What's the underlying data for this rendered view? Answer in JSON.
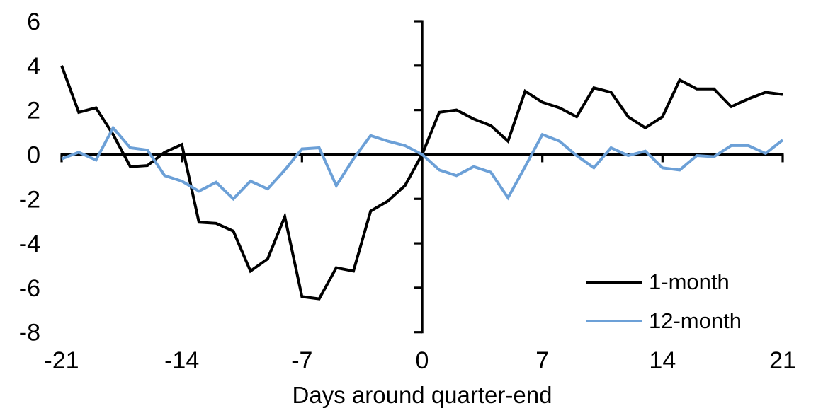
{
  "chart_data": {
    "type": "line",
    "title": "",
    "xlabel": "Days around quarter-end",
    "ylabel": "",
    "xlim": [
      -21,
      21
    ],
    "ylim": [
      -8,
      6
    ],
    "x_ticks": [
      -21,
      -14,
      -7,
      0,
      7,
      14,
      21
    ],
    "y_ticks": [
      6,
      4,
      2,
      0,
      -2,
      -4,
      -6,
      -8
    ],
    "grid": false,
    "legend_position": "lower-right-inside",
    "axis_color": "#000000",
    "x": [
      -21,
      -20,
      -19,
      -18,
      -17,
      -16,
      -15,
      -14,
      -13,
      -12,
      -11,
      -10,
      -9,
      -8,
      -7,
      -6,
      -5,
      -4,
      -3,
      -2,
      -1,
      0,
      1,
      2,
      3,
      4,
      5,
      6,
      7,
      8,
      9,
      10,
      11,
      12,
      13,
      14,
      15,
      16,
      17,
      18,
      19,
      20,
      21
    ],
    "series": [
      {
        "name": "1-month",
        "color": "#000000",
        "values": [
          4.0,
          1.9,
          2.1,
          0.9,
          -0.55,
          -0.5,
          0.1,
          0.45,
          -3.05,
          -3.1,
          -3.45,
          -5.25,
          -4.7,
          -2.8,
          -6.4,
          -6.5,
          -5.1,
          -5.25,
          -2.55,
          -2.1,
          -1.4,
          0.0,
          1.9,
          2.0,
          1.6,
          1.3,
          0.6,
          2.85,
          2.35,
          2.1,
          1.7,
          3.0,
          2.8,
          1.7,
          1.2,
          1.7,
          3.35,
          2.95,
          2.95,
          2.15,
          2.5,
          2.8,
          2.7
        ]
      },
      {
        "name": "12-month",
        "color": "#6CA0D7",
        "values": [
          -0.2,
          0.1,
          -0.25,
          1.2,
          0.3,
          0.2,
          -0.95,
          -1.2,
          -1.65,
          -1.25,
          -2.0,
          -1.2,
          -1.55,
          -0.7,
          0.25,
          0.3,
          -1.4,
          -0.2,
          0.85,
          0.6,
          0.4,
          0.0,
          -0.7,
          -0.95,
          -0.55,
          -0.8,
          -1.95,
          -0.55,
          0.9,
          0.6,
          -0.05,
          -0.6,
          0.3,
          -0.05,
          0.15,
          -0.6,
          -0.7,
          -0.05,
          -0.1,
          0.4,
          0.4,
          0.05,
          0.65
        ]
      }
    ]
  }
}
